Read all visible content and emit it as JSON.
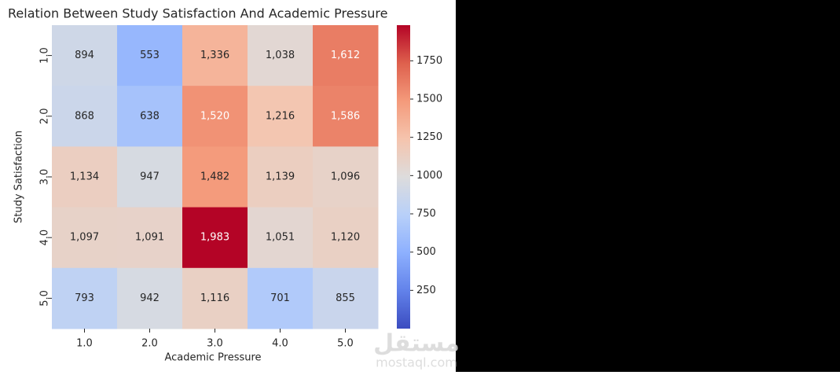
{
  "chart_data": {
    "type": "heatmap",
    "title": "Relation Between Study Satisfaction And Academic Pressure",
    "xlabel": "Academic Pressure",
    "ylabel": "Study Satisfaction",
    "categories": [
      "1.0",
      "2.0",
      "3.0",
      "4.0",
      "5.0"
    ],
    "y_categories": [
      "1.0",
      "2.0",
      "3.0",
      "4.0",
      "5.0"
    ],
    "values": [
      [
        894,
        553,
        1336,
        1038,
        1612
      ],
      [
        868,
        638,
        1520,
        1216,
        1586
      ],
      [
        1134,
        947,
        1482,
        1139,
        1096
      ],
      [
        1097,
        1091,
        1983,
        1051,
        1120
      ],
      [
        793,
        942,
        1116,
        701,
        855
      ]
    ],
    "value_labels": [
      [
        "894",
        "553",
        "1,336",
        "1,038",
        "1,612"
      ],
      [
        "868",
        "638",
        "1,520",
        "1,216",
        "1,586"
      ],
      [
        "1,134",
        "947",
        "1,482",
        "1,139",
        "1,096"
      ],
      [
        "1,097",
        "1,091",
        "1,983",
        "1,051",
        "1,120"
      ],
      [
        "793",
        "942",
        "1,116",
        "701",
        "855"
      ]
    ],
    "colormap": "coolwarm",
    "colorbar_lim": [
      0,
      1983
    ],
    "colorbar_ticks": [
      250,
      500,
      750,
      1000,
      1250,
      1500,
      1750
    ]
  },
  "watermark": [
    "مستقل",
    "mostaql.com"
  ]
}
